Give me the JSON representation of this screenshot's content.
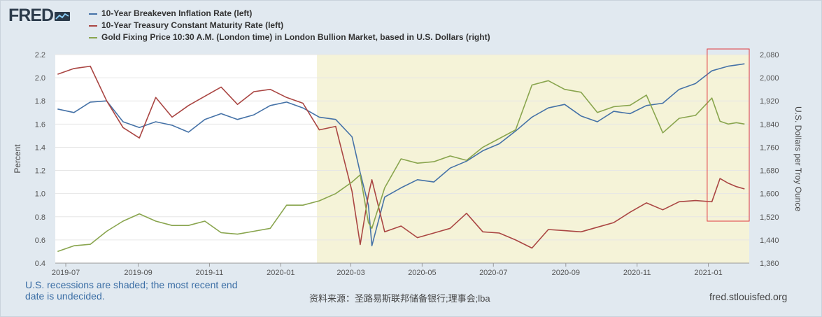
{
  "logo": {
    "text": "FRED",
    "icon": "trend-line-icon"
  },
  "legend": [
    {
      "label": "10-Year Breakeven Inflation Rate (left)",
      "color": "#4572a7"
    },
    {
      "label": "10-Year Treasury Constant Maturity Rate (left)",
      "color": "#aa4643"
    },
    {
      "label": "Gold Fixing Price 10:30 A.M. (London time) in London Bullion Market, based in U.S. Dollars (right)",
      "color": "#89a54e"
    }
  ],
  "footer": {
    "recession_note": "U.S. recessions are shaded; the most recent end date is undecided.",
    "source": "资料来源：圣路易斯联邦储备银行;理事会;lba",
    "site": "fred.stlouisfed.org"
  },
  "chart_data": {
    "type": "line",
    "ylabel_left": "Percent",
    "ylabel_right": "U.S. Dollars per Troy Ounce",
    "y_left_range": [
      0.4,
      2.2
    ],
    "y_right_range": [
      1360,
      2080
    ],
    "y_left_ticks": [
      "0.4",
      "0.6",
      "0.8",
      "1.0",
      "1.2",
      "1.4",
      "1.6",
      "1.8",
      "2.0",
      "2.2"
    ],
    "y_right_ticks": [
      "1,360",
      "1,440",
      "1,520",
      "1,600",
      "1,680",
      "1,760",
      "1,840",
      "1,920",
      "2,000",
      "2,080"
    ],
    "x_range": [
      "2019-06-22",
      "2021-02-05"
    ],
    "x_ticks": [
      "2019-07",
      "2019-09",
      "2019-11",
      "2020-01",
      "2020-03",
      "2020-05",
      "2020-07",
      "2020-09",
      "2020-11",
      "2021-01"
    ],
    "recession_shading": {
      "start": "2020-02-01",
      "end": "2021-02-05"
    },
    "highlight_box": {
      "start": "2020-12-31",
      "end": "2021-02-05",
      "color": "#e0393e"
    },
    "grid": true,
    "legend_position": "top-left",
    "series": [
      {
        "name": "10-Year Breakeven Inflation Rate (left)",
        "axis": "left",
        "color": "#4572a7",
        "x": [
          "2019-06-24",
          "2019-07-08",
          "2019-07-22",
          "2019-08-05",
          "2019-08-19",
          "2019-09-02",
          "2019-09-16",
          "2019-09-30",
          "2019-10-14",
          "2019-10-28",
          "2019-11-11",
          "2019-11-25",
          "2019-12-09",
          "2019-12-23",
          "2020-01-06",
          "2020-01-20",
          "2020-02-03",
          "2020-02-17",
          "2020-03-02",
          "2020-03-09",
          "2020-03-16",
          "2020-03-19",
          "2020-03-30",
          "2020-04-13",
          "2020-04-27",
          "2020-05-11",
          "2020-05-25",
          "2020-06-08",
          "2020-06-22",
          "2020-07-06",
          "2020-07-20",
          "2020-08-03",
          "2020-08-17",
          "2020-08-31",
          "2020-09-14",
          "2020-09-28",
          "2020-10-12",
          "2020-10-26",
          "2020-11-09",
          "2020-11-23",
          "2020-12-07",
          "2020-12-21",
          "2021-01-04",
          "2021-01-11",
          "2021-01-18",
          "2021-01-25",
          "2021-02-01"
        ],
        "values": [
          1.73,
          1.7,
          1.79,
          1.8,
          1.62,
          1.57,
          1.62,
          1.59,
          1.53,
          1.64,
          1.69,
          1.64,
          1.68,
          1.76,
          1.79,
          1.74,
          1.66,
          1.64,
          1.49,
          1.18,
          0.9,
          0.55,
          0.97,
          1.05,
          1.12,
          1.1,
          1.22,
          1.28,
          1.37,
          1.43,
          1.54,
          1.66,
          1.74,
          1.77,
          1.67,
          1.62,
          1.71,
          1.69,
          1.76,
          1.78,
          1.9,
          1.95,
          2.06,
          2.08,
          2.1,
          2.11,
          2.12
        ]
      },
      {
        "name": "10-Year Treasury Constant Maturity Rate (left)",
        "axis": "left",
        "color": "#aa4643",
        "x": [
          "2019-06-24",
          "2019-07-08",
          "2019-07-22",
          "2019-08-05",
          "2019-08-19",
          "2019-09-02",
          "2019-09-16",
          "2019-09-30",
          "2019-10-14",
          "2019-10-28",
          "2019-11-11",
          "2019-11-25",
          "2019-12-09",
          "2019-12-23",
          "2020-01-06",
          "2020-01-20",
          "2020-02-03",
          "2020-02-17",
          "2020-03-02",
          "2020-03-09",
          "2020-03-16",
          "2020-03-19",
          "2020-03-30",
          "2020-04-13",
          "2020-04-27",
          "2020-05-11",
          "2020-05-25",
          "2020-06-08",
          "2020-06-22",
          "2020-07-06",
          "2020-07-20",
          "2020-08-03",
          "2020-08-17",
          "2020-08-31",
          "2020-09-14",
          "2020-09-28",
          "2020-10-12",
          "2020-10-26",
          "2020-11-09",
          "2020-11-23",
          "2020-12-07",
          "2020-12-21",
          "2021-01-04",
          "2021-01-11",
          "2021-01-18",
          "2021-01-25",
          "2021-02-01"
        ],
        "values": [
          2.03,
          2.08,
          2.1,
          1.8,
          1.57,
          1.48,
          1.83,
          1.66,
          1.76,
          1.84,
          1.92,
          1.77,
          1.88,
          1.9,
          1.83,
          1.78,
          1.55,
          1.58,
          1.02,
          0.56,
          0.99,
          1.12,
          0.67,
          0.72,
          0.62,
          0.66,
          0.7,
          0.83,
          0.67,
          0.66,
          0.6,
          0.53,
          0.69,
          0.68,
          0.67,
          0.71,
          0.75,
          0.84,
          0.92,
          0.86,
          0.93,
          0.94,
          0.93,
          1.13,
          1.09,
          1.06,
          1.04
        ]
      },
      {
        "name": "Gold Fixing Price 10:30 A.M. (London time) in London Bullion Market, based in U.S. Dollars (right)",
        "axis": "right",
        "color": "#89a54e",
        "x": [
          "2019-06-24",
          "2019-07-08",
          "2019-07-22",
          "2019-08-05",
          "2019-08-19",
          "2019-09-02",
          "2019-09-16",
          "2019-09-30",
          "2019-10-14",
          "2019-10-28",
          "2019-11-11",
          "2019-11-25",
          "2019-12-09",
          "2019-12-23",
          "2020-01-06",
          "2020-01-20",
          "2020-02-03",
          "2020-02-17",
          "2020-03-02",
          "2020-03-09",
          "2020-03-16",
          "2020-03-19",
          "2020-03-30",
          "2020-04-13",
          "2020-04-27",
          "2020-05-11",
          "2020-05-25",
          "2020-06-08",
          "2020-06-22",
          "2020-07-06",
          "2020-07-20",
          "2020-08-03",
          "2020-08-17",
          "2020-08-31",
          "2020-09-14",
          "2020-09-28",
          "2020-10-12",
          "2020-10-26",
          "2020-11-09",
          "2020-11-23",
          "2020-12-07",
          "2020-12-21",
          "2021-01-04",
          "2021-01-11",
          "2021-01-18",
          "2021-01-25",
          "2021-02-01"
        ],
        "values": [
          1400,
          1420,
          1425,
          1470,
          1505,
          1530,
          1505,
          1490,
          1490,
          1505,
          1465,
          1460,
          1470,
          1480,
          1560,
          1560,
          1575,
          1600,
          1640,
          1665,
          1500,
          1480,
          1620,
          1720,
          1705,
          1710,
          1730,
          1715,
          1760,
          1790,
          1820,
          1975,
          1990,
          1960,
          1950,
          1880,
          1900,
          1905,
          1940,
          1810,
          1860,
          1870,
          1930,
          1850,
          1840,
          1845,
          1840
        ]
      }
    ]
  }
}
